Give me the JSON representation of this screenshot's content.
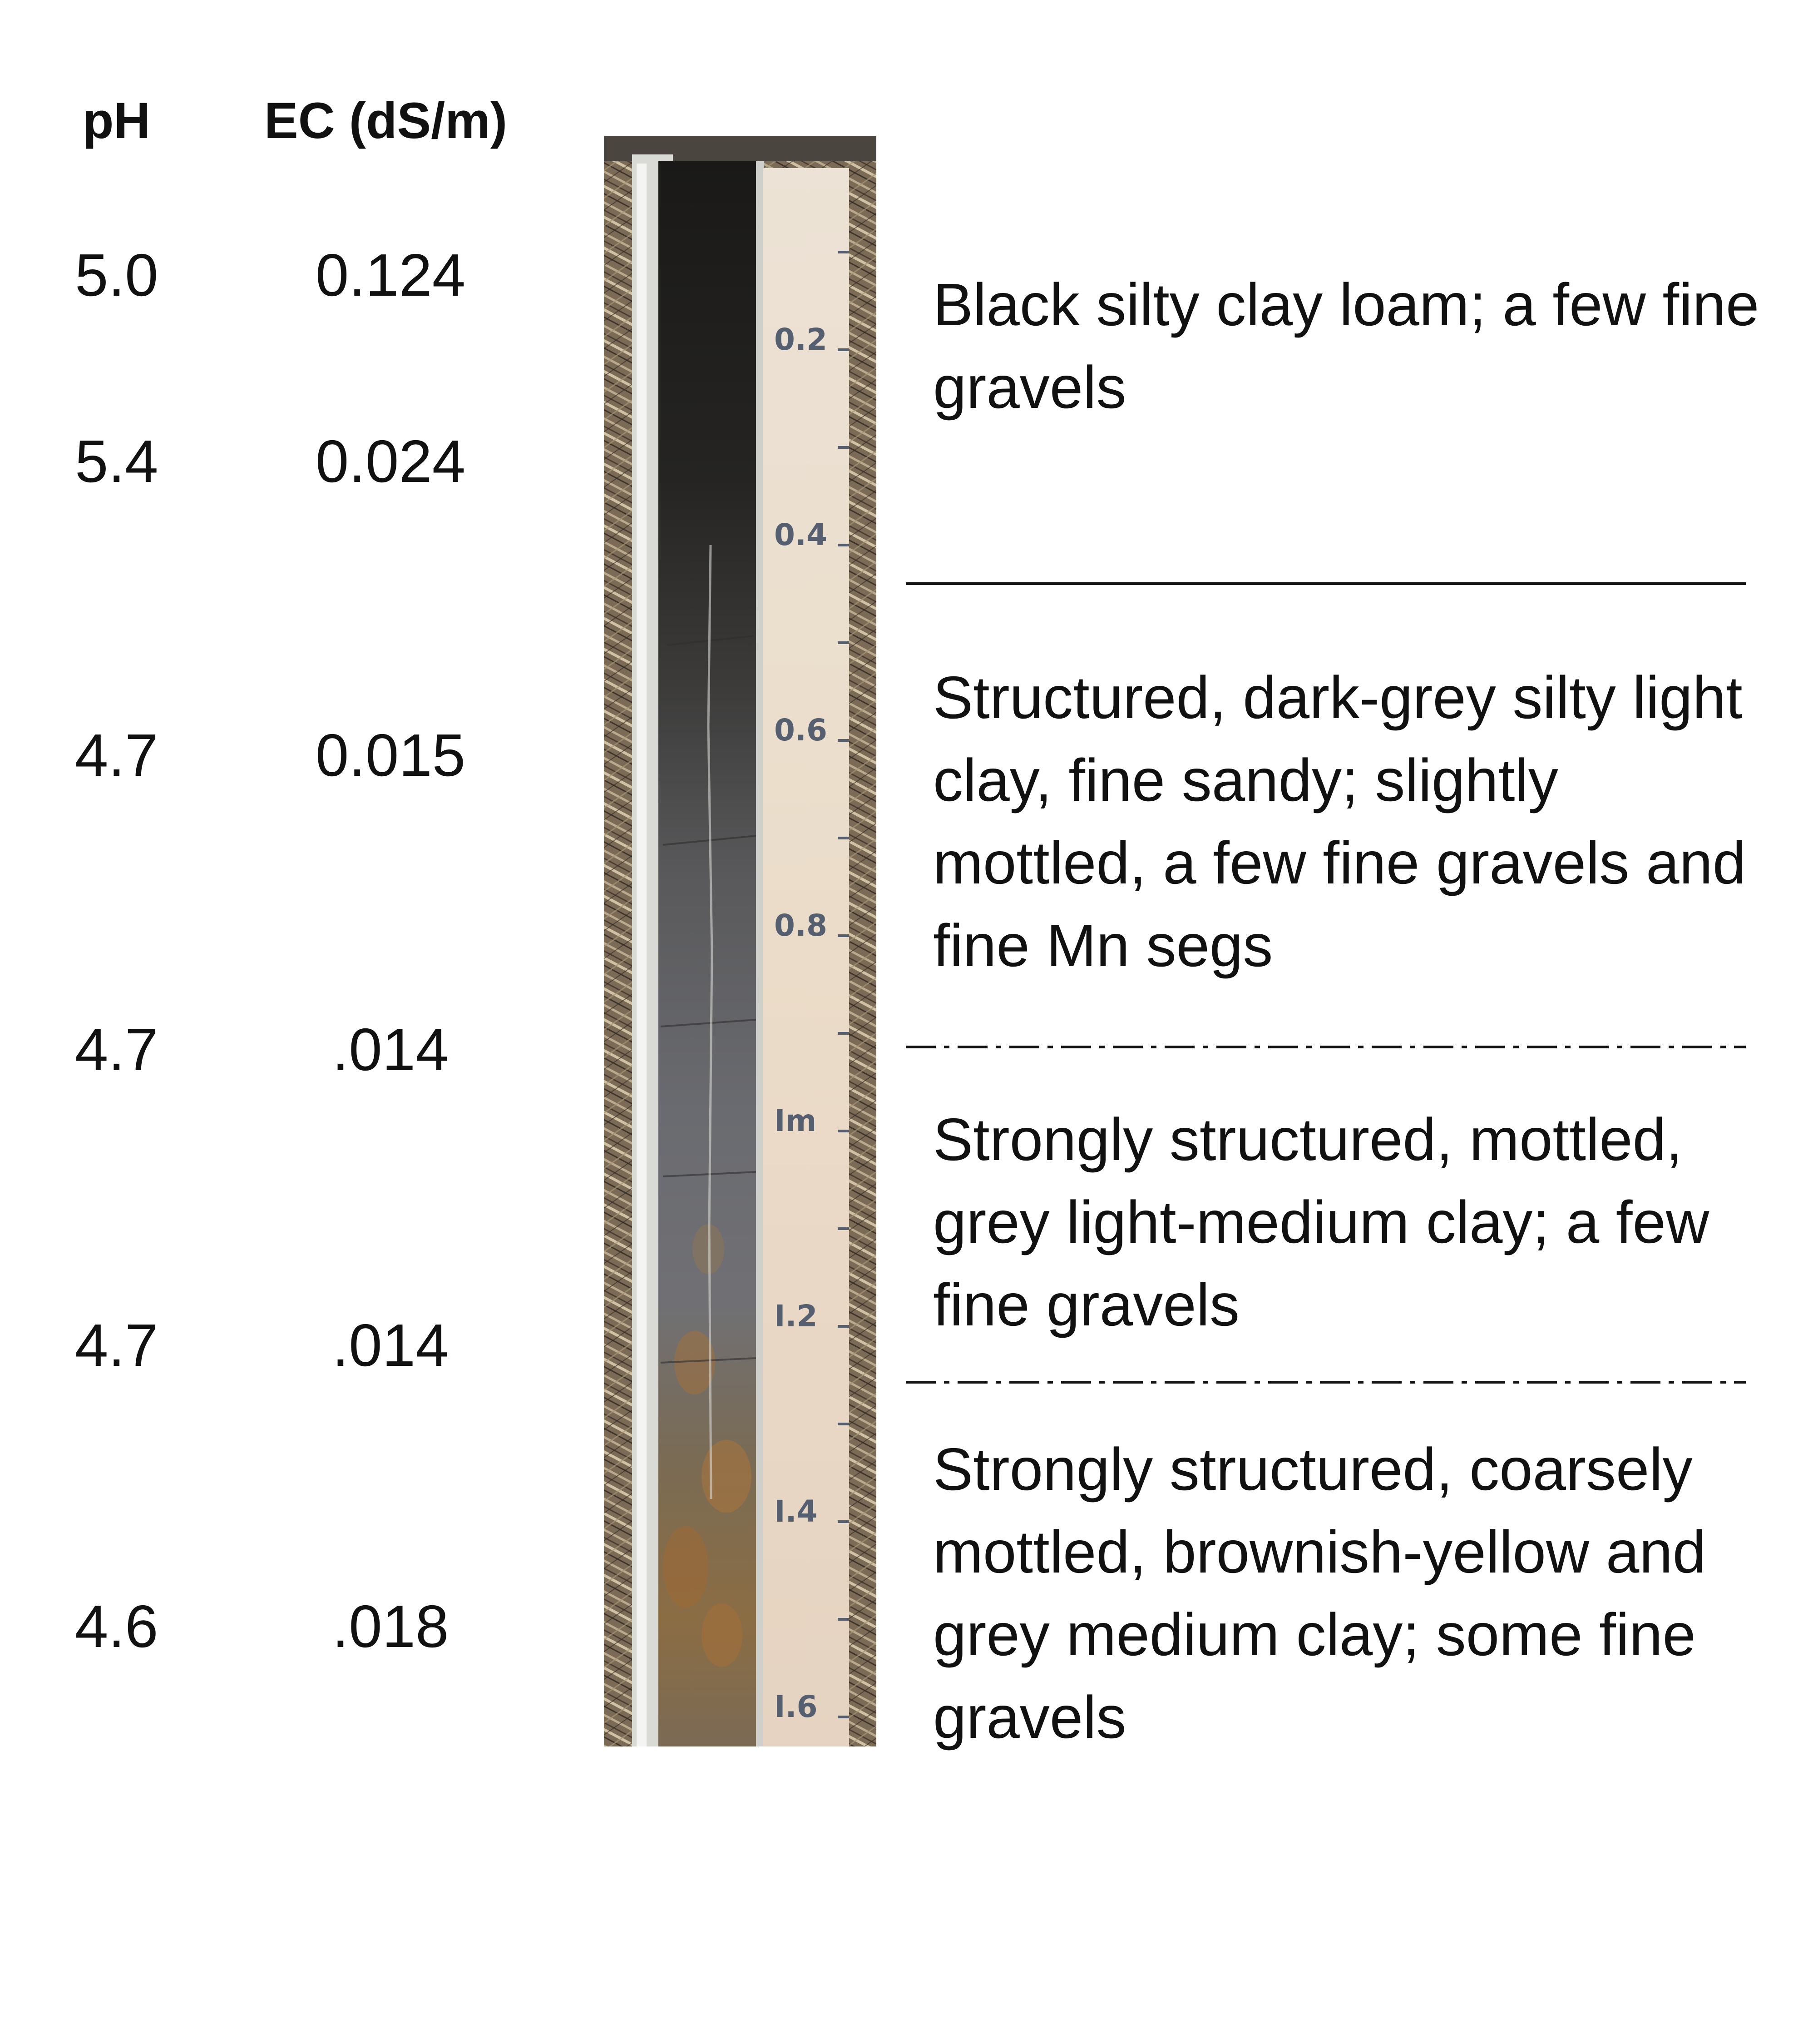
{
  "headers": {
    "ph": "pH",
    "ec": "EC (dS/m)"
  },
  "measurements": [
    {
      "ph": "5.0",
      "ec": "0.124"
    },
    {
      "ph": "5.4",
      "ec": "0.024"
    },
    {
      "ph": "4.7",
      "ec": "0.015"
    },
    {
      "ph": "4.7",
      "ec": ".014"
    },
    {
      "ph": "4.7",
      "ec": ".014"
    },
    {
      "ph": "4.6",
      "ec": ".018"
    }
  ],
  "horizons": [
    {
      "text": "Black silty clay loam; a few fine gravels"
    },
    {
      "text": "Structured, dark-grey silty light clay, fine sandy; slightly mottled, a few fine gravels and fine Mn segs"
    },
    {
      "text": "Strongly structured, mottled, grey light-medium clay; a few fine gravels"
    },
    {
      "text": "Strongly structured, coarsely mottled, brownish-yellow and grey medium clay; some fine gravels"
    }
  ],
  "boundaries": [
    "solid",
    "dash-dot",
    "dash-dot"
  ],
  "depth_scale": {
    "labels": [
      "0.2",
      "0.4",
      "0.6",
      "0.8",
      "Im",
      "I.2",
      "I.4",
      "I.6"
    ]
  },
  "colors": {
    "topsoil": "#1e1d1c",
    "subsoil_dark_grey": "#4f4f52",
    "grey_clay": "#6d6e72",
    "mottled_brownish_yellow": "#8a7048",
    "ruler": "#efe6da",
    "ground": "#7a6a56"
  }
}
